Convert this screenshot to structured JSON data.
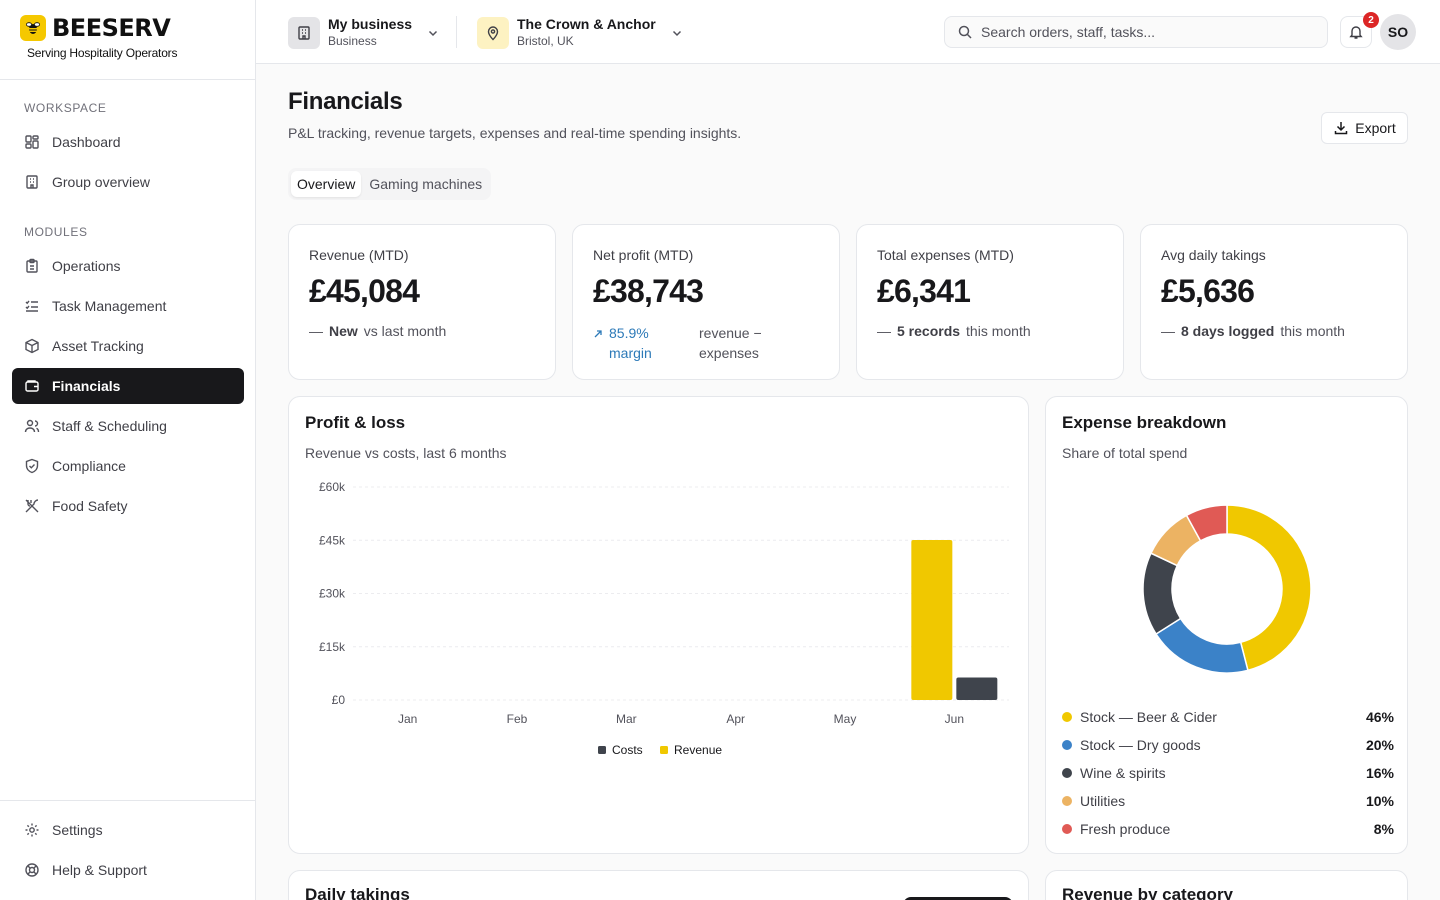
{
  "brand": {
    "name": "BEESERV",
    "tagline": "Serving Hospitality Operators"
  },
  "sidebar": {
    "workspace_label": "WORKSPACE",
    "workspace_items": [
      {
        "label": "Dashboard",
        "icon": "dashboard-icon"
      },
      {
        "label": "Group overview",
        "icon": "building-icon"
      }
    ],
    "modules_label": "MODULES",
    "module_items": [
      {
        "label": "Operations",
        "icon": "clipboard-icon"
      },
      {
        "label": "Task Management",
        "icon": "list-checks-icon"
      },
      {
        "label": "Asset Tracking",
        "icon": "box-icon"
      },
      {
        "label": "Financials",
        "icon": "wallet-icon",
        "active": true
      },
      {
        "label": "Staff & Scheduling",
        "icon": "users-icon"
      },
      {
        "label": "Compliance",
        "icon": "shield-check-icon"
      },
      {
        "label": "Food Safety",
        "icon": "utensils-icon"
      }
    ],
    "bottom_items": [
      {
        "label": "Settings",
        "icon": "gear-icon"
      },
      {
        "label": "Help & Support",
        "icon": "lifebuoy-icon"
      }
    ]
  },
  "header": {
    "business": {
      "title": "My business",
      "subtitle": "Business"
    },
    "venue": {
      "title": "The Crown & Anchor",
      "subtitle": "Bristol, UK"
    },
    "search_placeholder": "Search orders, staff, tasks...",
    "notification_count": "2",
    "avatar_initials": "SO"
  },
  "page": {
    "title": "Financials",
    "subtitle": "P&L tracking, revenue targets, expenses and real-time spending insights.",
    "export_label": "Export",
    "tabs": [
      "Overview",
      "Gaming machines"
    ]
  },
  "kpis": [
    {
      "label": "Revenue (MTD)",
      "value": "£45,084",
      "dash": "—",
      "highlight": "New",
      "note": "vs last month"
    },
    {
      "label": "Net profit (MTD)",
      "value": "£38,743",
      "highlight": "85.9% margin",
      "note": "revenue − expenses"
    },
    {
      "label": "Total expenses (MTD)",
      "value": "£6,341",
      "dash": "—",
      "highlight": "5 records",
      "note": "this month"
    },
    {
      "label": "Avg daily takings",
      "value": "£5,636",
      "dash": "—",
      "highlight": "8 days logged",
      "note": "this month"
    }
  ],
  "pnl": {
    "title": "Profit & loss",
    "subtitle": "Revenue vs costs, last 6 months"
  },
  "expenses": {
    "title": "Expense breakdown",
    "subtitle": "Share of total spend"
  },
  "bottom_cards": {
    "daily_takings_title": "Daily takings",
    "revenue_by_category_title": "Revenue by category"
  },
  "chart_data": [
    {
      "type": "bar",
      "categories": [
        "Jan",
        "Feb",
        "Mar",
        "Apr",
        "May",
        "Jun"
      ],
      "series": [
        {
          "name": "Costs",
          "color": "#3f444c",
          "values": [
            0,
            0,
            0,
            0,
            0,
            6341
          ]
        },
        {
          "name": "Revenue",
          "color": "#f0c800",
          "values": [
            0,
            0,
            0,
            0,
            0,
            45084
          ]
        }
      ],
      "ylim": [
        0,
        60000
      ],
      "yticks": [
        0,
        15000,
        30000,
        45000,
        60000
      ],
      "ytick_labels": [
        "£0",
        "£15k",
        "£30k",
        "£45k",
        "£60k"
      ],
      "grid": true,
      "legend": "bottom"
    },
    {
      "type": "pie",
      "donut": true,
      "slices": [
        {
          "label": "Stock — Beer & Cider",
          "value": 46,
          "display": "46%",
          "color": "#f0c800"
        },
        {
          "label": "Stock — Dry goods",
          "value": 20,
          "display": "20%",
          "color": "#3b82c8"
        },
        {
          "label": "Wine & spirits",
          "value": 16,
          "display": "16%",
          "color": "#3f444c"
        },
        {
          "label": "Utilities",
          "value": 10,
          "display": "10%",
          "color": "#ecb363"
        },
        {
          "label": "Fresh produce",
          "value": 8,
          "display": "8%",
          "color": "#e05a55"
        }
      ],
      "legend": "bottom"
    }
  ]
}
